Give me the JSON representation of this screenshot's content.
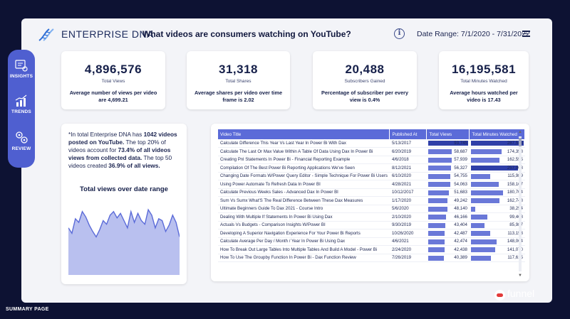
{
  "header": {
    "brand_prefix": "ENTERPRISE",
    "brand_suffix": "DNA",
    "title": "What videos are consumers watching on YouTube?",
    "date_range": "Date Range: 7/1/2020 - 7/31/2022"
  },
  "nav": {
    "items": [
      {
        "label": "INSIGHTS",
        "icon": "insights-icon"
      },
      {
        "label": "TRENDS",
        "icon": "trends-icon"
      },
      {
        "label": "REVIEW",
        "icon": "review-icon"
      }
    ]
  },
  "kpis": [
    {
      "value": "4,896,576",
      "label": "Total Views",
      "desc_pre": "Average number of views per video are ",
      "desc_val": "4,699.21"
    },
    {
      "value": "31,318",
      "label": "Total Shares",
      "desc_pre": "Average shares per video over time frame is ",
      "desc_val": "2.02"
    },
    {
      "value": "20,488",
      "label": "Subscribers Gained",
      "desc_pre": "Percentage of subscriber per every view is ",
      "desc_val": "0.4%"
    },
    {
      "value": "16,195,581",
      "label": "Total Minutes Watched",
      "desc_pre": "Average hours watched per video is ",
      "desc_val": "17.43"
    }
  ],
  "summary": {
    "p1": "*In total Enterprise DNA has ",
    "b1": "1042 videos posted on YouTube.",
    "p2": " The top 20% of videos account for ",
    "b2": "73.4% of all videos views from collected data.",
    "p3": " The top 50 videos created ",
    "b3": "36.9% of all views."
  },
  "area_chart": {
    "title": "Total views over date range"
  },
  "chart_data": {
    "type": "area",
    "title": "Total views over date range",
    "xlabel": "",
    "ylabel": "",
    "values": [
      52,
      46,
      62,
      58,
      70,
      64,
      55,
      48,
      42,
      50,
      60,
      56,
      66,
      70,
      63,
      68,
      60,
      52,
      70,
      58,
      68,
      60,
      56,
      72,
      66,
      52,
      62,
      60,
      48,
      55,
      66,
      58,
      42
    ],
    "grid": false,
    "color": "#5b6bd8"
  },
  "table": {
    "columns": [
      "Video Title",
      "Published At",
      "Total Views",
      "Total Minutes Watched"
    ],
    "max_views": 93745,
    "max_minutes": 287548,
    "rows": [
      [
        "Calculate Difference This Year Vs Last Year In Power Bi With Dax",
        "5/13/2017",
        93745,
        287548
      ],
      [
        "Calculate The Last Or Max Value Within A Table Of Data Using Dax In Power Bi",
        "6/20/2019",
        58687,
        174358
      ],
      [
        "Creating Pnl Statements In Power Bi - Financial Reporting Example",
        "4/6/2018",
        57939,
        162555
      ],
      [
        "Compilation Of The Best Power Bi Reporting Applications We've Seen",
        "8/12/2021",
        56327,
        257908
      ],
      [
        "Changing Date Formats W/Power Query Editor - Simple Technique For Power Bi Users",
        "6/10/2020",
        54755,
        115989
      ],
      [
        "Using Power Automate To Refresh Data In Power BI",
        "4/28/2021",
        54063,
        158167
      ],
      [
        "Calculate Previous Weeks Sales - Advanced Dax In Power BI",
        "10/12/2017",
        51683,
        180704
      ],
      [
        "Sum Vs Sumx What'S The Real Difference Between These Dax Measures",
        "1/17/2020",
        49242,
        162748
      ],
      [
        "Ultimate Beginners Guide To Dax 2021 - Course Intro",
        "5/6/2020",
        48140,
        38254
      ],
      [
        "Dealing With Multiple If Statements In Power Bi Using Dax",
        "2/10/2020",
        46166,
        99468
      ],
      [
        "Actuals Vs Budgets - Comparison Insights W/Power BI",
        "9/30/2019",
        43404,
        85987
      ],
      [
        "Developing A Superior Navigation Experience For Your Power Bi Reports",
        "10/26/2020",
        42487,
        113153
      ],
      [
        "Calculate Average Per Day / Month / Year In Power Bi Using Dax",
        "4/6/2021",
        42474,
        148064
      ],
      [
        "How To Break Out Large Tables Into Multiple Tables And Build A Model - Power Bi",
        "2/24/2020",
        42438,
        141070
      ],
      [
        "How To Use The Groupby Function In Power Bi - Dax Function Review",
        "7/26/2019",
        40389,
        117615
      ]
    ]
  },
  "footer": {
    "page_label": "SUMMARY PAGE",
    "partner": "funnel"
  }
}
